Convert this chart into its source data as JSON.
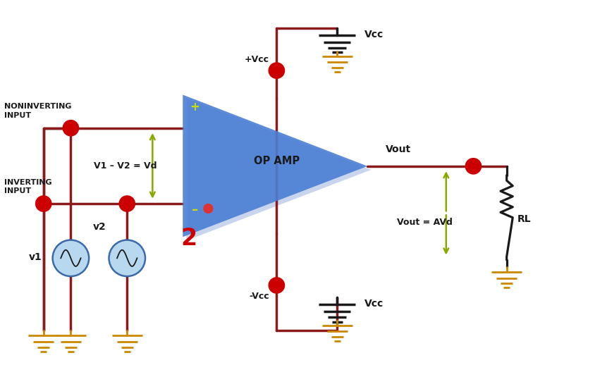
{
  "bg_color": "#ffffff",
  "wire_color": "#8B1A1A",
  "wire_lw": 2.5,
  "opamp_fill": "#4a7fd4",
  "node_color": "#cc0000",
  "green_color": "#88aa00",
  "black_color": "#1a1a1a",
  "orange_color": "#cc8800",
  "text_color": "#1a1a1a",
  "red2_color": "#cc0000",
  "yellow_color": "#ccdd00",
  "label_vout": "Vout",
  "label_vout_eq": "Vout = AVd",
  "label_vcc_top": "Vcc",
  "label_vcc_bot": "Vcc",
  "label_plus_vcc": "+Vcc",
  "label_minus_vcc": "-Vcc",
  "label_rl": "RL",
  "label_opamp": "OP AMP",
  "label_noninv": "NONINVERTING\nINPUT",
  "label_inv": "INVERTING\nINPUT",
  "label_vd": "V1 – V2 = Vd",
  "label_v1": "v1",
  "label_v2": "v2",
  "label_num2": "2",
  "label_plus": "+",
  "label_minus": "–",
  "xlim": [
    0,
    10
  ],
  "ylim": [
    0,
    6
  ]
}
